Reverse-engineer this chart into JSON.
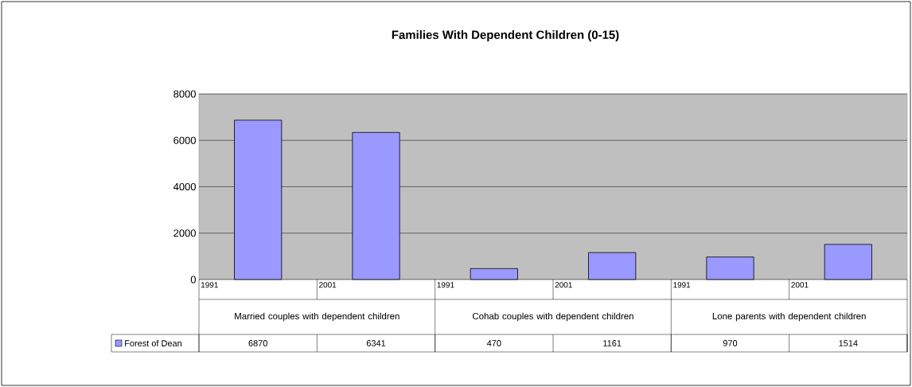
{
  "chart_data": {
    "type": "bar",
    "title": "Families With Dependent Children (0-15)",
    "categories": [
      "1991",
      "2001",
      "1991",
      "2001",
      "1991",
      "2001"
    ],
    "series": [
      {
        "name": "Forest of Dean",
        "color": "#9999ff",
        "values": [
          6870,
          6341,
          470,
          1161,
          970,
          1514
        ]
      }
    ],
    "annotations": [
      "Married couples with dependent children",
      "Cohab couples with dependent children",
      "Lone parents with dependent children"
    ],
    "ylim": [
      0,
      8000
    ],
    "yticks": [
      0,
      2000,
      4000,
      6000,
      8000
    ],
    "grid": "y",
    "legend": "bottom",
    "data_labels": true
  }
}
